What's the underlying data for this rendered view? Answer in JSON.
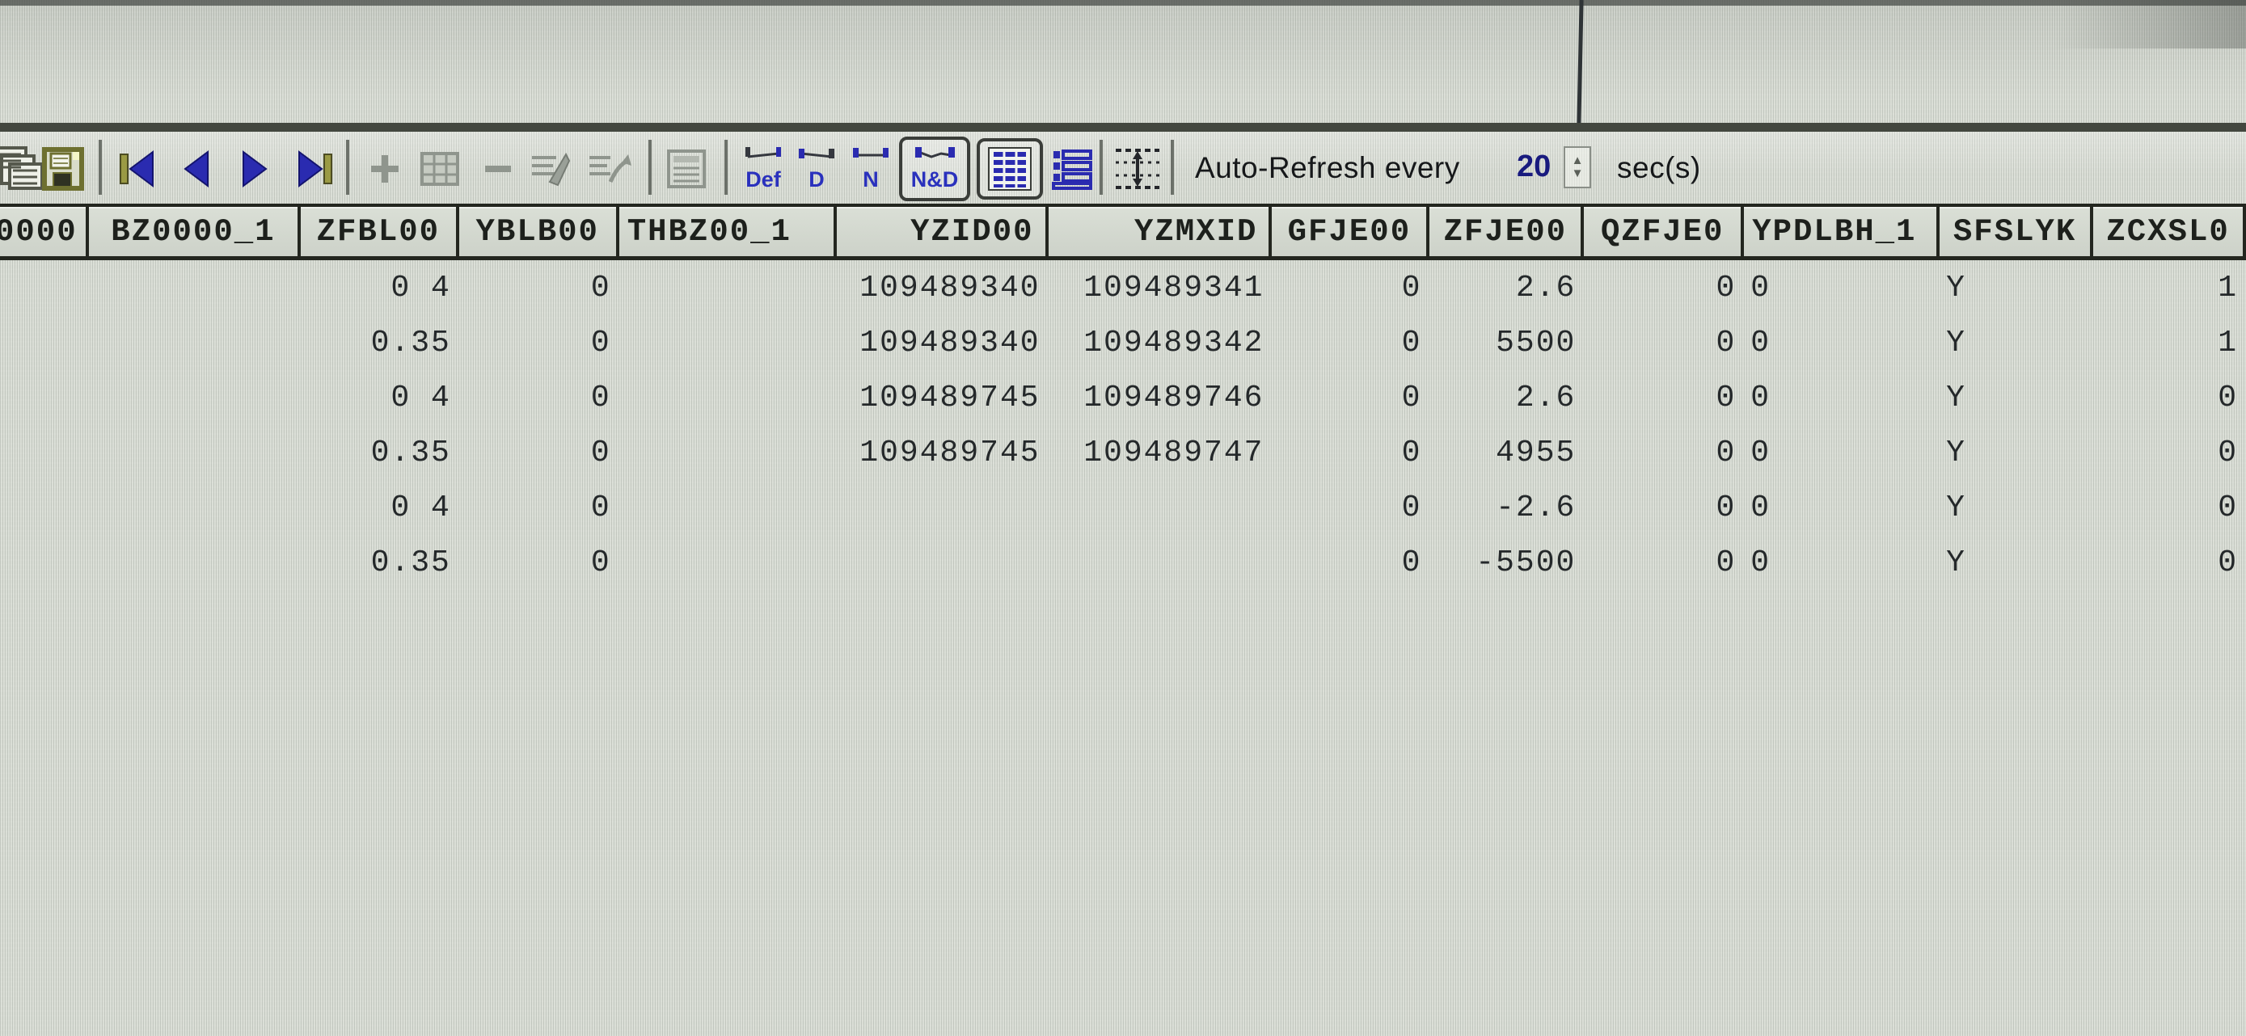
{
  "toolbar": {
    "icon_names": [
      "print-icon",
      "save-icon",
      "first-record-icon",
      "prior-record-icon",
      "next-record-icon",
      "last-record-icon",
      "insert-record-icon",
      "grid-insert-icon",
      "delete-record-icon",
      "post-edit-icon",
      "cancel-edit-icon",
      "define-grid-icon",
      "grid-view-icon",
      "record-view-icon",
      "fit-rows-icon",
      "spinner-icon"
    ],
    "modes": [
      {
        "label": "Def",
        "pressed": false
      },
      {
        "label": "D",
        "pressed": false
      },
      {
        "label": "N",
        "pressed": false
      },
      {
        "label": "N&D",
        "pressed": true
      }
    ],
    "auto_refresh": {
      "prefix": "Auto-Refresh every",
      "value": "20",
      "suffix": "sec(s)"
    }
  },
  "table": {
    "columns": [
      "0000",
      "BZ0000_1",
      "ZFBL00",
      "YBLB00",
      "THBZ00_1",
      "YZID00",
      "YZMXID",
      "GFJE00",
      "ZFJE00",
      "QZFJE0",
      "YPDLBH_1",
      "SFSLYK",
      "ZCXSL0"
    ],
    "rows": [
      [
        "",
        "",
        "0 4",
        "0",
        "",
        "109489340",
        "109489341",
        "0",
        "2.6",
        "0",
        "0",
        "Y",
        "1"
      ],
      [
        "",
        "",
        "0.35",
        "0",
        "",
        "109489340",
        "109489342",
        "0",
        "5500",
        "0",
        "0",
        "Y",
        "1"
      ],
      [
        "",
        "",
        "0 4",
        "0",
        "",
        "109489745",
        "109489746",
        "0",
        "2.6",
        "0",
        "0",
        "Y",
        "0"
      ],
      [
        "",
        "",
        "0.35",
        "0",
        "",
        "109489745",
        "109489747",
        "0",
        "4955",
        "0",
        "0",
        "Y",
        "0"
      ],
      [
        "",
        "",
        "0 4",
        "0",
        "",
        "",
        "",
        "0",
        "-2.6",
        "0",
        "0",
        "Y",
        "0"
      ],
      [
        "",
        "",
        "0.35",
        "0",
        "",
        "",
        "",
        "0",
        "-5500",
        "0",
        "0",
        "Y",
        "0"
      ]
    ]
  },
  "colors": {
    "accent_blue": "#2a2bb0",
    "disabled_gray": "#8f958d",
    "olive": "#7c7c34",
    "navy_value": "#181a7e",
    "screen_bg": "#d8dcd4",
    "line_dark": "#23261f"
  }
}
